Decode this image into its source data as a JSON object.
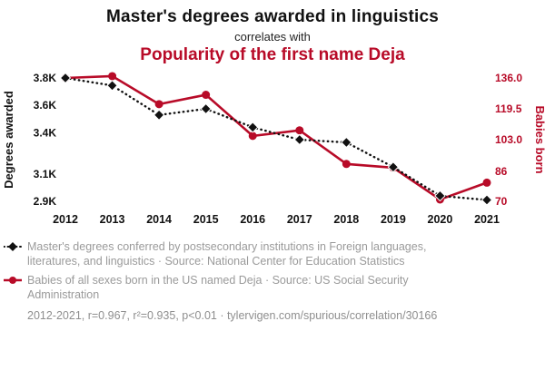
{
  "header": {
    "title": "Master's degrees awarded in linguistics",
    "connector": "correlates with",
    "subtitle": "Popularity of the first name Deja"
  },
  "colors": {
    "accent_red": "#b80b28",
    "series_black": "#111111",
    "legend_gray": "#9a9a9a"
  },
  "legend": [
    {
      "series": "degrees",
      "text": "Master's degrees conferred by postsecondary institutions in Foreign languages, literatures, and linguistics · Source: National Center for Education Statistics"
    },
    {
      "series": "babies",
      "text": "Babies of all sexes born in the US named Deja · Source: US Social Security Administration"
    }
  ],
  "footer": {
    "text": "2012-2021, r=0.967, r²=0.935, p<0.01 · tylervigen.com/spurious/correlation/30166"
  },
  "chart_data": {
    "type": "line",
    "x": [
      2012,
      2013,
      2014,
      2015,
      2016,
      2017,
      2018,
      2019,
      2020,
      2021
    ],
    "series": [
      {
        "name": "Master's degrees awarded in linguistics",
        "axis": "left",
        "color": "black",
        "marker": "diamond",
        "line": "dotted",
        "values": [
          3800,
          3745,
          3530,
          3575,
          3440,
          3350,
          3330,
          3150,
          2940,
          2910
        ]
      },
      {
        "name": "Popularity of the first name Deja",
        "axis": "right",
        "color": "red",
        "marker": "circle",
        "line": "solid",
        "values": [
          136,
          137,
          122,
          127,
          105,
          108,
          90,
          88,
          71,
          80
        ]
      }
    ],
    "left_axis": {
      "label": "Degrees awarded",
      "range": [
        2900,
        3800
      ],
      "ticks": [
        2900,
        3100,
        3400,
        3600,
        3800
      ],
      "tick_labels": [
        "2.9K",
        "3.1K",
        "3.4K",
        "3.6K",
        "3.8K"
      ]
    },
    "right_axis": {
      "label": "Babies born",
      "range": [
        70,
        136
      ],
      "ticks": [
        70,
        86,
        103,
        119.5,
        136
      ],
      "tick_labels": [
        "70",
        "86",
        "103.0",
        "119.5",
        "136.0"
      ]
    },
    "grid": false,
    "legend_position": "bottom-left"
  }
}
